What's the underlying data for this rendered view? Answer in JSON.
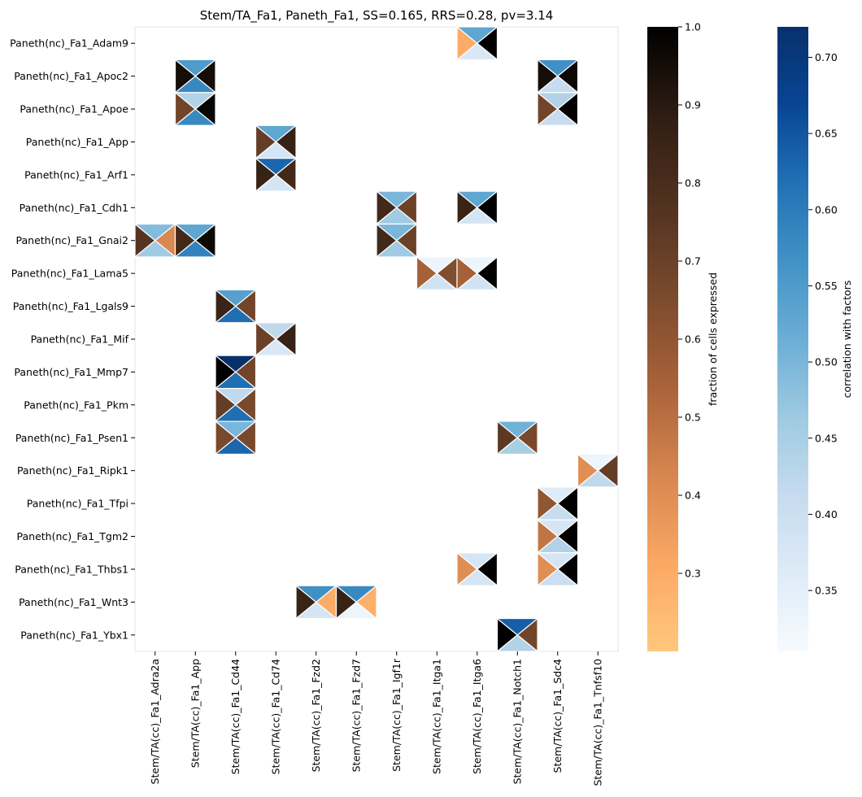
{
  "chart_data": {
    "type": "heatmap",
    "title": "Stem/TA_Fa1, Paneth_Fa1, SS=0.165, RRS=0.28, pv=3.14",
    "rows": [
      "Paneth(nc)_Fa1_Adam9",
      "Paneth(nc)_Fa1_Apoc2",
      "Paneth(nc)_Fa1_Apoe",
      "Paneth(nc)_Fa1_App",
      "Paneth(nc)_Fa1_Arf1",
      "Paneth(nc)_Fa1_Cdh1",
      "Paneth(nc)_Fa1_Gnai2",
      "Paneth(nc)_Fa1_Lama5",
      "Paneth(nc)_Fa1_Lgals9",
      "Paneth(nc)_Fa1_Mif",
      "Paneth(nc)_Fa1_Mmp7",
      "Paneth(nc)_Fa1_Pkm",
      "Paneth(nc)_Fa1_Psen1",
      "Paneth(nc)_Fa1_Ripk1",
      "Paneth(nc)_Fa1_Tfpi",
      "Paneth(nc)_Fa1_Tgm2",
      "Paneth(nc)_Fa1_Thbs1",
      "Paneth(nc)_Fa1_Wnt3",
      "Paneth(nc)_Fa1_Ybx1"
    ],
    "columns": [
      "Stem/TA(cc)_Fa1_Adra2a",
      "Stem/TA(cc)_Fa1_App",
      "Stem/TA(cc)_Fa1_Cd44",
      "Stem/TA(cc)_Fa1_Cd74",
      "Stem/TA(cc)_Fa1_Fzd2",
      "Stem/TA(cc)_Fa1_Fzd7",
      "Stem/TA(cc)_Fa1_Igf1r",
      "Stem/TA(cc)_Fa1_Itga1",
      "Stem/TA(cc)_Fa1_Itga6",
      "Stem/TA(cc)_Fa1_Notch1",
      "Stem/TA(cc)_Fa1_Sdc4",
      "Stem/TA(cc)_Fa1_Tnfsf10"
    ],
    "cells": [
      {
        "row": 0,
        "col": 8,
        "left": 0.3,
        "right": 1.0,
        "top": 0.53,
        "bottom": 0.37
      },
      {
        "row": 1,
        "col": 1,
        "left": 0.95,
        "right": 0.95,
        "top": 0.55,
        "bottom": 0.58
      },
      {
        "row": 1,
        "col": 10,
        "left": 0.95,
        "right": 0.97,
        "top": 0.57,
        "bottom": 0.41
      },
      {
        "row": 2,
        "col": 1,
        "left": 0.68,
        "right": 0.98,
        "top": 0.44,
        "bottom": 0.58
      },
      {
        "row": 2,
        "col": 10,
        "left": 0.68,
        "right": 1.0,
        "top": 0.44,
        "bottom": 0.41
      },
      {
        "row": 3,
        "col": 3,
        "left": 0.72,
        "right": 0.86,
        "top": 0.53,
        "bottom": 0.38
      },
      {
        "row": 4,
        "col": 3,
        "left": 0.86,
        "right": 0.82,
        "top": 0.63,
        "bottom": 0.38
      },
      {
        "row": 5,
        "col": 6,
        "left": 0.82,
        "right": 0.7,
        "top": 0.5,
        "bottom": 0.46
      },
      {
        "row": 5,
        "col": 8,
        "left": 0.85,
        "right": 1.0,
        "top": 0.53,
        "bottom": 0.38
      },
      {
        "row": 6,
        "col": 0,
        "left": 0.76,
        "right": 0.42,
        "top": 0.49,
        "bottom": 0.46
      },
      {
        "row": 6,
        "col": 1,
        "left": 0.82,
        "right": 0.97,
        "top": 0.53,
        "bottom": 0.59
      },
      {
        "row": 6,
        "col": 6,
        "left": 0.82,
        "right": 0.7,
        "top": 0.5,
        "bottom": 0.46
      },
      {
        "row": 7,
        "col": 7,
        "left": 0.55,
        "right": 0.64,
        "top": 0.33,
        "bottom": 0.39
      },
      {
        "row": 7,
        "col": 8,
        "left": 0.55,
        "right": 1.0,
        "top": 0.33,
        "bottom": 0.39
      },
      {
        "row": 8,
        "col": 2,
        "left": 0.85,
        "right": 0.68,
        "top": 0.54,
        "bottom": 0.62
      },
      {
        "row": 9,
        "col": 3,
        "left": 0.7,
        "right": 0.86,
        "top": 0.42,
        "bottom": 0.37
      },
      {
        "row": 10,
        "col": 2,
        "left": 1.0,
        "right": 0.68,
        "top": 0.72,
        "bottom": 0.62
      },
      {
        "row": 11,
        "col": 2,
        "left": 0.72,
        "right": 0.66,
        "top": 0.42,
        "bottom": 0.62
      },
      {
        "row": 12,
        "col": 2,
        "left": 0.66,
        "right": 0.66,
        "top": 0.5,
        "bottom": 0.63
      },
      {
        "row": 12,
        "col": 9,
        "left": 0.74,
        "right": 0.66,
        "top": 0.51,
        "bottom": 0.45
      },
      {
        "row": 13,
        "col": 11,
        "left": 0.4,
        "right": 0.72,
        "top": 0.33,
        "bottom": 0.42
      },
      {
        "row": 14,
        "col": 10,
        "left": 0.6,
        "right": 1.0,
        "top": 0.36,
        "bottom": 0.41
      },
      {
        "row": 15,
        "col": 10,
        "left": 0.48,
        "right": 1.0,
        "top": 0.38,
        "bottom": 0.44
      },
      {
        "row": 16,
        "col": 8,
        "left": 0.4,
        "right": 1.0,
        "top": 0.38,
        "bottom": 0.38
      },
      {
        "row": 16,
        "col": 10,
        "left": 0.4,
        "right": 1.0,
        "top": 0.38,
        "bottom": 0.4
      },
      {
        "row": 17,
        "col": 4,
        "left": 0.85,
        "right": 0.3,
        "top": 0.57,
        "bottom": 0.38
      },
      {
        "row": 17,
        "col": 5,
        "left": 0.86,
        "right": 0.28,
        "top": 0.58,
        "bottom": 0.33
      },
      {
        "row": 18,
        "col": 9,
        "left": 1.0,
        "right": 0.68,
        "top": 0.64,
        "bottom": 0.44
      }
    ],
    "colorbars": [
      {
        "label": "fraction of cells expressed",
        "min": 0.2,
        "max": 1.0,
        "ticks": [
          "0.3",
          "0.4",
          "0.5",
          "0.6",
          "0.7",
          "0.8",
          "0.9",
          "1.0"
        ],
        "tick_values": [
          0.3,
          0.4,
          0.5,
          0.6,
          0.7,
          0.8,
          0.9,
          1.0
        ],
        "stops": [
          "#ffc77c",
          "#fba864",
          "#d5854f",
          "#a86239",
          "#7a4a2d",
          "#523220",
          "#2f1d13",
          "#000000"
        ]
      },
      {
        "label": "correlation with factors",
        "min": 0.31,
        "max": 0.72,
        "ticks": [
          "0.35",
          "0.40",
          "0.45",
          "0.50",
          "0.55",
          "0.60",
          "0.65",
          "0.70"
        ],
        "tick_values": [
          0.35,
          0.4,
          0.45,
          0.5,
          0.55,
          0.6,
          0.65,
          0.7
        ],
        "stops": [
          "#f7fbff",
          "#deebf7",
          "#c6dbef",
          "#9ecae1",
          "#6baed6",
          "#4292c6",
          "#2171b5",
          "#084594",
          "#08306b"
        ]
      }
    ],
    "left_right_metric": "fraction of cells expressed",
    "top_bottom_metric": "correlation with factors",
    "grid": false,
    "legend": "right"
  }
}
